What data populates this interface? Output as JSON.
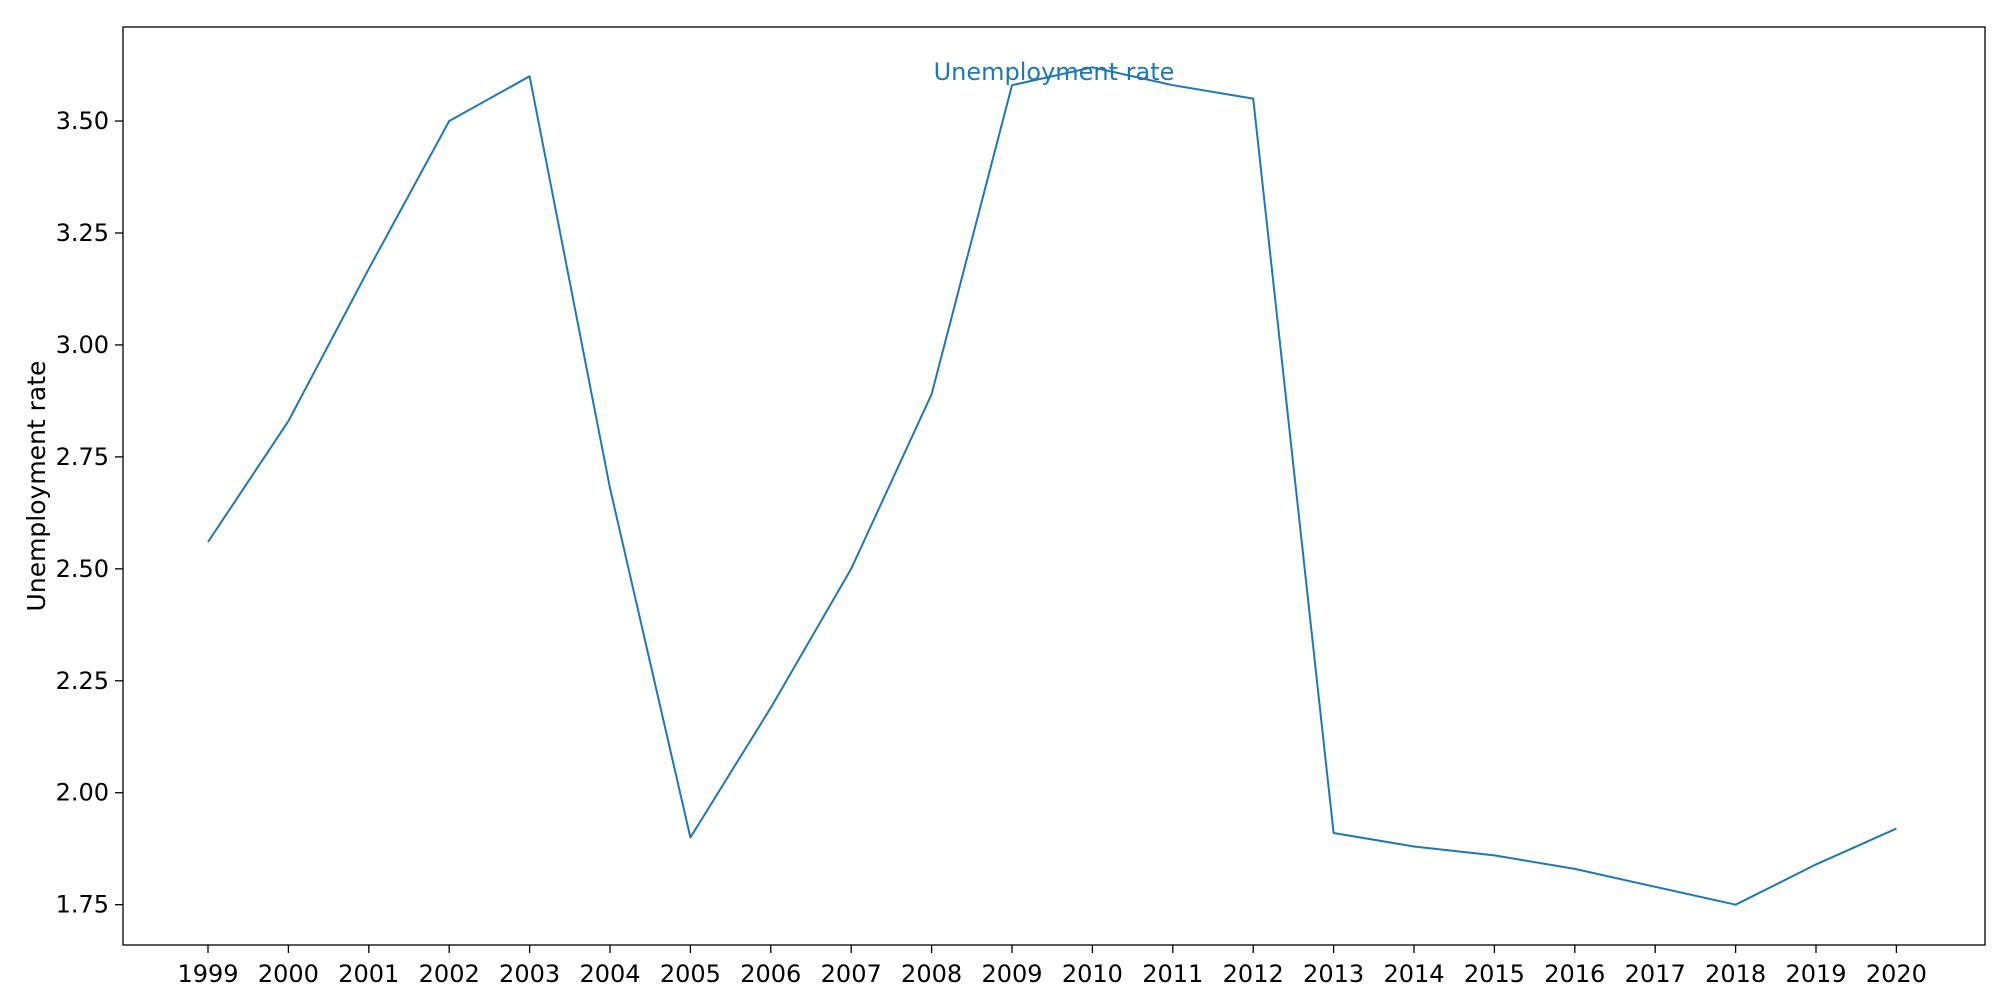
{
  "chart_data": {
    "type": "line",
    "title": "",
    "xlabel": "",
    "ylabel": "Unemployment rate",
    "x": [
      "1999",
      "2000",
      "2001",
      "2002",
      "2003",
      "2004",
      "2005",
      "2006",
      "2007",
      "2008",
      "2009",
      "2010",
      "2011",
      "2012",
      "2013",
      "2014",
      "2015",
      "2016",
      "2017",
      "2018",
      "2019",
      "2020"
    ],
    "series": [
      {
        "name": "Unemployment rate",
        "color": "#1f77b4",
        "values": [
          2.56,
          2.83,
          3.17,
          3.5,
          3.6,
          2.68,
          1.9,
          2.19,
          2.5,
          2.89,
          3.58,
          3.62,
          3.58,
          3.55,
          1.91,
          1.88,
          1.86,
          1.83,
          1.79,
          1.75,
          1.84,
          1.92
        ]
      }
    ],
    "yticks": [
      "1.75",
      "2.00",
      "2.25",
      "2.50",
      "2.75",
      "3.00",
      "3.25",
      "3.50"
    ],
    "ylim": [
      1.66,
      3.71
    ],
    "grid": false,
    "legend": "none"
  }
}
